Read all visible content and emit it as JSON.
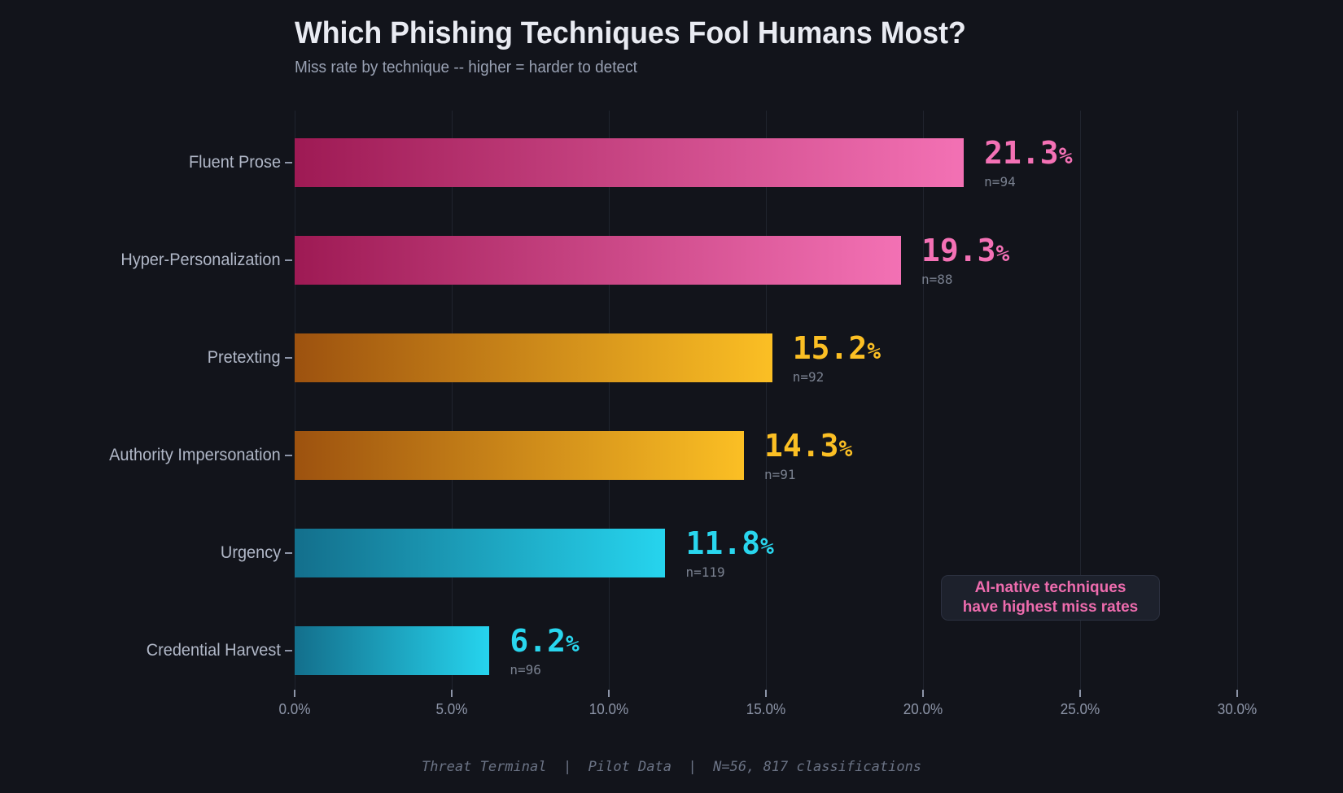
{
  "title": "Which Phishing Techniques Fool Humans Most?",
  "subtitle": "Miss rate by technique  --  higher = harder to detect",
  "footer": "Threat Terminal  |  Pilot Data  |  N=56, 817 classifications",
  "annotation": {
    "lines": [
      "AI-native techniques",
      "have highest miss rates"
    ]
  },
  "chart_data": {
    "type": "bar",
    "orientation": "horizontal",
    "title": "Which Phishing Techniques Fool Humans Most?",
    "subtitle": "Miss rate by technique  --  higher = harder to detect",
    "categories": [
      "Fluent Prose",
      "Hyper-Personalization",
      "Pretexting",
      "Authority Impersonation",
      "Urgency",
      "Credential Harvest"
    ],
    "values": [
      21.3,
      19.3,
      15.2,
      14.3,
      11.8,
      6.2
    ],
    "value_labels": [
      "21.3%",
      "19.3%",
      "15.2%",
      "14.3%",
      "11.8%",
      "6.2%"
    ],
    "n_labels": [
      "n=94",
      "n=88",
      "n=92",
      "n=91",
      "n=119",
      "n=96"
    ],
    "color_groups": [
      "pink",
      "pink",
      "amber",
      "amber",
      "cyan",
      "cyan"
    ],
    "xlabel": "",
    "ylabel": "",
    "xlim": [
      0,
      30
    ],
    "x_tick_values": [
      0,
      5,
      10,
      15,
      20,
      25,
      30
    ],
    "x_tick_labels": [
      "0.0%",
      "5.0%",
      "10.0%",
      "15.0%",
      "20.0%",
      "25.0%",
      "30.0%"
    ],
    "grid": "vertical",
    "legend": "none"
  },
  "palette": {
    "pink": {
      "start": "#9e1a54",
      "end": "#f371b4",
      "text": "#f471b5"
    },
    "amber": {
      "start": "#9d520f",
      "end": "#fbbf24",
      "text": "#fbbf24"
    },
    "cyan": {
      "start": "#136f8c",
      "end": "#26d4ee",
      "text": "#29d6ee"
    },
    "background": "#12141b",
    "gridline": "#20242e",
    "title_color": "#e9ebf2",
    "subtitle_color": "#99a1b3",
    "category_color": "#b0b7c7",
    "tick_color": "#8d95a8",
    "n_color": "#79808f",
    "footer_color": "#6b7385",
    "annotation_text": "#ee6cae",
    "annotation_bg": "#1d212c",
    "annotation_border": "#2c3140"
  }
}
